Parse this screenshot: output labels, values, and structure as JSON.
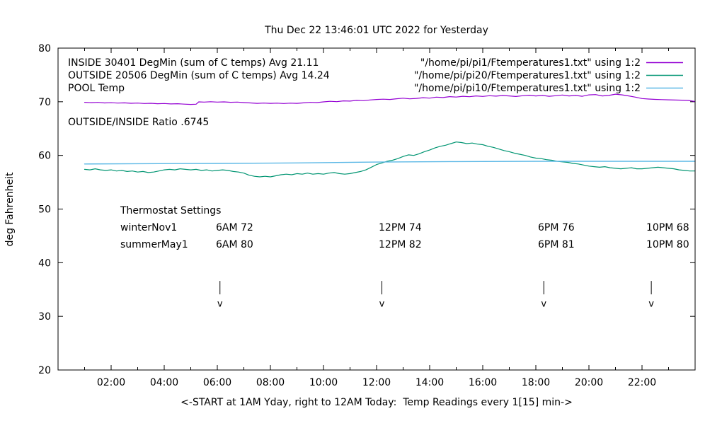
{
  "chart_data": {
    "type": "line",
    "title": "Thu Dec 22 13:46:01 UTC 2022 for Yesterday",
    "xlabel": "<-START at 1AM Yday, right to 12AM Today:  Temp Readings every 1[15] min->",
    "ylabel": "deg Fahrenheit",
    "xlim": [
      0,
      24
    ],
    "ylim": [
      20,
      80
    ],
    "grid": false,
    "legend_position": "top-inside",
    "xticks": [
      {
        "h": 2,
        "label": "02:00"
      },
      {
        "h": 4,
        "label": "04:00"
      },
      {
        "h": 6,
        "label": "06:00"
      },
      {
        "h": 8,
        "label": "08:00"
      },
      {
        "h": 10,
        "label": "10:00"
      },
      {
        "h": 12,
        "label": "12:00"
      },
      {
        "h": 14,
        "label": "14:00"
      },
      {
        "h": 16,
        "label": "16:00"
      },
      {
        "h": 18,
        "label": "18:00"
      },
      {
        "h": 20,
        "label": "20:00"
      },
      {
        "h": 22,
        "label": "22:00"
      }
    ],
    "xminor_hours": [
      1,
      3,
      5,
      7,
      9,
      11,
      13,
      15,
      17,
      19,
      21,
      23
    ],
    "yticks": [
      20,
      30,
      40,
      50,
      60,
      70,
      80
    ],
    "series": [
      {
        "name": "INSIDE 30401 DegMin (sum of C temps) Avg 21.11",
        "source": "\"/home/pi/pi1/Ftemperatures1.txt\" using 1:2",
        "color": "#9400d3",
        "width": 1.2,
        "points": [
          [
            1,
            69.9
          ],
          [
            1.25,
            69.83
          ],
          [
            1.5,
            69.88
          ],
          [
            1.75,
            69.78
          ],
          [
            2,
            69.82
          ],
          [
            2.25,
            69.75
          ],
          [
            2.5,
            69.8
          ],
          [
            2.75,
            69.72
          ],
          [
            3,
            69.76
          ],
          [
            3.25,
            69.68
          ],
          [
            3.5,
            69.72
          ],
          [
            3.75,
            69.64
          ],
          [
            4,
            69.68
          ],
          [
            4.25,
            69.6
          ],
          [
            4.5,
            69.64
          ],
          [
            4.75,
            69.55
          ],
          [
            5,
            69.5
          ],
          [
            5.2,
            69.54
          ],
          [
            5.3,
            69.98
          ],
          [
            5.5,
            69.94
          ],
          [
            5.75,
            70.0
          ],
          [
            6,
            69.94
          ],
          [
            6.25,
            69.98
          ],
          [
            6.5,
            69.9
          ],
          [
            6.75,
            69.94
          ],
          [
            7,
            69.85
          ],
          [
            7.25,
            69.78
          ],
          [
            7.5,
            69.7
          ],
          [
            7.75,
            69.76
          ],
          [
            8,
            69.7
          ],
          [
            8.25,
            69.74
          ],
          [
            8.5,
            69.68
          ],
          [
            8.75,
            69.74
          ],
          [
            9,
            69.7
          ],
          [
            9.25,
            69.8
          ],
          [
            9.5,
            69.88
          ],
          [
            9.75,
            69.84
          ],
          [
            10,
            69.98
          ],
          [
            10.25,
            70.08
          ],
          [
            10.5,
            70.02
          ],
          [
            10.75,
            70.16
          ],
          [
            11,
            70.12
          ],
          [
            11.25,
            70.26
          ],
          [
            11.5,
            70.2
          ],
          [
            11.75,
            70.34
          ],
          [
            12,
            70.42
          ],
          [
            12.25,
            70.48
          ],
          [
            12.5,
            70.42
          ],
          [
            12.75,
            70.56
          ],
          [
            13,
            70.66
          ],
          [
            13.25,
            70.54
          ],
          [
            13.5,
            70.62
          ],
          [
            13.75,
            70.76
          ],
          [
            14,
            70.68
          ],
          [
            14.25,
            70.86
          ],
          [
            14.5,
            70.78
          ],
          [
            14.75,
            70.96
          ],
          [
            15,
            70.88
          ],
          [
            15.25,
            71.02
          ],
          [
            15.5,
            70.94
          ],
          [
            15.75,
            71.08
          ],
          [
            16,
            71.0
          ],
          [
            16.25,
            71.12
          ],
          [
            16.5,
            71.04
          ],
          [
            16.75,
            71.16
          ],
          [
            17,
            71.08
          ],
          [
            17.25,
            70.98
          ],
          [
            17.5,
            71.12
          ],
          [
            17.75,
            71.22
          ],
          [
            18,
            71.08
          ],
          [
            18.25,
            71.18
          ],
          [
            18.5,
            71.02
          ],
          [
            18.75,
            71.12
          ],
          [
            19,
            71.26
          ],
          [
            19.25,
            71.08
          ],
          [
            19.5,
            71.18
          ],
          [
            19.75,
            71.02
          ],
          [
            20,
            71.28
          ],
          [
            20.25,
            71.34
          ],
          [
            20.5,
            71.08
          ],
          [
            20.75,
            71.18
          ],
          [
            21,
            71.42
          ],
          [
            21.25,
            71.28
          ],
          [
            21.5,
            71.08
          ],
          [
            21.75,
            70.86
          ],
          [
            22,
            70.6
          ],
          [
            22.25,
            70.5
          ],
          [
            22.5,
            70.44
          ],
          [
            22.75,
            70.4
          ],
          [
            23,
            70.36
          ],
          [
            23.25,
            70.32
          ],
          [
            23.5,
            70.3
          ],
          [
            23.75,
            70.24
          ],
          [
            24,
            70.05
          ]
        ]
      },
      {
        "name": "OUTSIDE 20506 DegMin (sum of C temps) Avg 14.24",
        "source": "\"/home/pi/pi20/Ftemperatures1.txt\" using 1:2",
        "color": "#009572",
        "width": 1.2,
        "points": [
          [
            1,
            57.4
          ],
          [
            1.2,
            57.3
          ],
          [
            1.4,
            57.5
          ],
          [
            1.6,
            57.3
          ],
          [
            1.8,
            57.2
          ],
          [
            2,
            57.3
          ],
          [
            2.2,
            57.1
          ],
          [
            2.4,
            57.2
          ],
          [
            2.6,
            57.0
          ],
          [
            2.8,
            57.1
          ],
          [
            3,
            56.9
          ],
          [
            3.2,
            57.0
          ],
          [
            3.4,
            56.8
          ],
          [
            3.6,
            56.9
          ],
          [
            3.8,
            57.1
          ],
          [
            4,
            57.3
          ],
          [
            4.2,
            57.4
          ],
          [
            4.4,
            57.3
          ],
          [
            4.6,
            57.5
          ],
          [
            4.8,
            57.4
          ],
          [
            5,
            57.3
          ],
          [
            5.2,
            57.4
          ],
          [
            5.4,
            57.2
          ],
          [
            5.6,
            57.3
          ],
          [
            5.8,
            57.1
          ],
          [
            6,
            57.2
          ],
          [
            6.2,
            57.3
          ],
          [
            6.4,
            57.2
          ],
          [
            6.6,
            57.0
          ],
          [
            6.8,
            56.9
          ],
          [
            7,
            56.7
          ],
          [
            7.2,
            56.3
          ],
          [
            7.4,
            56.1
          ],
          [
            7.6,
            56.0
          ],
          [
            7.8,
            56.1
          ],
          [
            8,
            56.0
          ],
          [
            8.2,
            56.2
          ],
          [
            8.4,
            56.4
          ],
          [
            8.6,
            56.5
          ],
          [
            8.8,
            56.4
          ],
          [
            9,
            56.6
          ],
          [
            9.2,
            56.5
          ],
          [
            9.4,
            56.7
          ],
          [
            9.6,
            56.5
          ],
          [
            9.8,
            56.6
          ],
          [
            10,
            56.5
          ],
          [
            10.2,
            56.7
          ],
          [
            10.4,
            56.8
          ],
          [
            10.6,
            56.6
          ],
          [
            10.8,
            56.5
          ],
          [
            11,
            56.6
          ],
          [
            11.2,
            56.8
          ],
          [
            11.4,
            57.0
          ],
          [
            11.6,
            57.3
          ],
          [
            11.8,
            57.8
          ],
          [
            12,
            58.3
          ],
          [
            12.2,
            58.6
          ],
          [
            12.4,
            58.9
          ],
          [
            12.6,
            59.1
          ],
          [
            12.8,
            59.4
          ],
          [
            13,
            59.8
          ],
          [
            13.2,
            60.1
          ],
          [
            13.4,
            60.0
          ],
          [
            13.6,
            60.3
          ],
          [
            13.8,
            60.7
          ],
          [
            14,
            61.0
          ],
          [
            14.2,
            61.4
          ],
          [
            14.4,
            61.7
          ],
          [
            14.6,
            61.9
          ],
          [
            14.8,
            62.2
          ],
          [
            15,
            62.5
          ],
          [
            15.2,
            62.4
          ],
          [
            15.4,
            62.2
          ],
          [
            15.6,
            62.3
          ],
          [
            15.8,
            62.1
          ],
          [
            16,
            62.0
          ],
          [
            16.2,
            61.7
          ],
          [
            16.4,
            61.5
          ],
          [
            16.6,
            61.2
          ],
          [
            16.8,
            60.9
          ],
          [
            17,
            60.7
          ],
          [
            17.2,
            60.4
          ],
          [
            17.4,
            60.2
          ],
          [
            17.6,
            60.0
          ],
          [
            17.8,
            59.7
          ],
          [
            18,
            59.5
          ],
          [
            18.2,
            59.4
          ],
          [
            18.4,
            59.2
          ],
          [
            18.6,
            59.1
          ],
          [
            18.8,
            58.9
          ],
          [
            19,
            58.8
          ],
          [
            19.2,
            58.7
          ],
          [
            19.4,
            58.5
          ],
          [
            19.6,
            58.4
          ],
          [
            19.8,
            58.2
          ],
          [
            20,
            58.0
          ],
          [
            20.2,
            57.9
          ],
          [
            20.4,
            57.8
          ],
          [
            20.6,
            57.9
          ],
          [
            20.8,
            57.7
          ],
          [
            21,
            57.6
          ],
          [
            21.2,
            57.5
          ],
          [
            21.4,
            57.6
          ],
          [
            21.6,
            57.7
          ],
          [
            21.8,
            57.5
          ],
          [
            22,
            57.5
          ],
          [
            22.2,
            57.6
          ],
          [
            22.4,
            57.7
          ],
          [
            22.6,
            57.8
          ],
          [
            22.8,
            57.7
          ],
          [
            23,
            57.6
          ],
          [
            23.2,
            57.5
          ],
          [
            23.4,
            57.3
          ],
          [
            23.6,
            57.2
          ],
          [
            23.8,
            57.1
          ],
          [
            24,
            57.1
          ]
        ]
      },
      {
        "name": "POOL Temp",
        "source": "\"/home/pi/pi10/Ftemperatures1.txt\" using 1:2",
        "color": "#5cb8e6",
        "width": 1.4,
        "points": [
          [
            1,
            58.4
          ],
          [
            3,
            58.45
          ],
          [
            6,
            58.5
          ],
          [
            9,
            58.6
          ],
          [
            12,
            58.75
          ],
          [
            15,
            58.85
          ],
          [
            18,
            58.9
          ],
          [
            21,
            58.9
          ],
          [
            24,
            58.9
          ]
        ]
      }
    ],
    "annotations": {
      "ratio_text": "OUTSIDE/INSIDE Ratio .6745",
      "arrow_hours": [
        6.1,
        12.2,
        18.3,
        22.35
      ],
      "arrow_glyph": "v",
      "thermostat": {
        "title": "Thermostat Settings",
        "rows": [
          {
            "name": "winterNov1",
            "settings": [
              "6AM 72",
              "12PM 74",
              "6PM 76",
              "10PM 68"
            ]
          },
          {
            "name": "summerMay1",
            "settings": [
              "6AM 80",
              "12PM 82",
              "6PM 81",
              "10PM 80"
            ]
          }
        ]
      }
    }
  }
}
